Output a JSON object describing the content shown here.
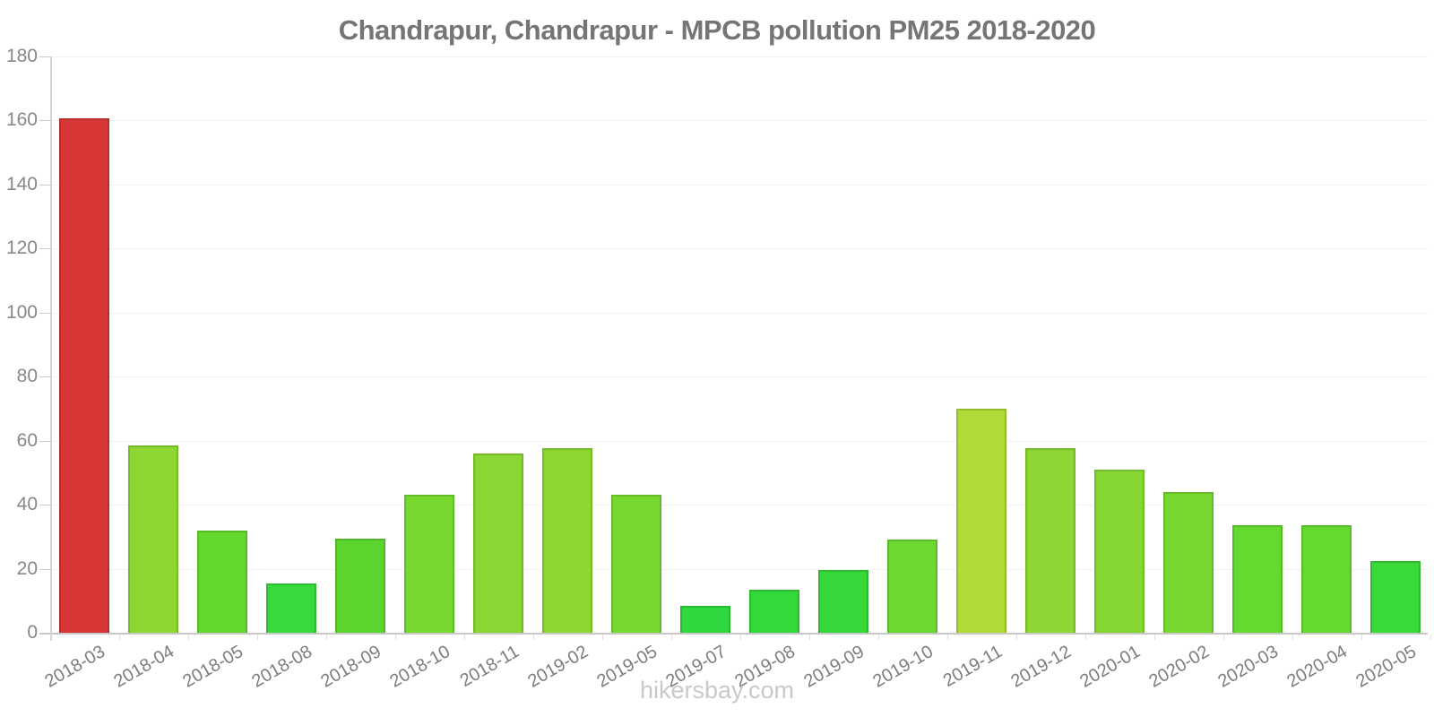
{
  "page": {
    "title": "Chandrapur, Chandrapur - MPCB pollution PM25 2018-2020",
    "footer_text": "hikersbay.com"
  },
  "chart_data": {
    "type": "bar",
    "title": "Chandrapur, Chandrapur - MPCB pollution PM25 2018-2020",
    "xlabel": "",
    "ylabel": "",
    "categories": [
      "2018-03",
      "2018-04",
      "2018-05",
      "2018-08",
      "2018-09",
      "2018-10",
      "2018-11",
      "2019-02",
      "2019-05",
      "2019-07",
      "2019-08",
      "2019-09",
      "2019-10",
      "2019-11",
      "2019-12",
      "2020-01",
      "2020-02",
      "2020-03",
      "2020-04",
      "2020-05"
    ],
    "values": [
      160.5,
      58.5,
      32,
      15.5,
      29.5,
      43,
      56,
      57.5,
      43,
      8.5,
      13.5,
      19.5,
      29,
      70,
      57.5,
      51,
      44,
      33.5,
      33.5,
      22.5
    ],
    "bar_colors": [
      "#d63734",
      "#8cd732",
      "#62d82e",
      "#38d93a",
      "#5cd62e",
      "#77d830",
      "#8ad632",
      "#8cd732",
      "#78d830",
      "#2fd83e",
      "#33d83b",
      "#35d838",
      "#6cd930",
      "#aedb35",
      "#8cd733",
      "#85d832",
      "#79d830",
      "#64d92f",
      "#66d92f",
      "#3ad93a"
    ],
    "ylim": [
      0,
      180
    ],
    "ytick_interval": 20,
    "ytick_labels": [
      "0",
      "20",
      "40",
      "60",
      "80",
      "100",
      "120",
      "140",
      "160",
      "180"
    ],
    "grid": true,
    "legend": false,
    "xtick_rotation_deg": -30,
    "colors": {
      "red_high": "#d63734",
      "olive_mid": "#aedb35",
      "green_low": "#2fd83e",
      "axis": "#d4d4d4",
      "baseline": "#c8c8c8",
      "grid": "#f2f2f2",
      "y_label": "#888888",
      "x_label": "#7d7d7d",
      "title": "#757575",
      "footer": "#c9c9c9"
    }
  }
}
